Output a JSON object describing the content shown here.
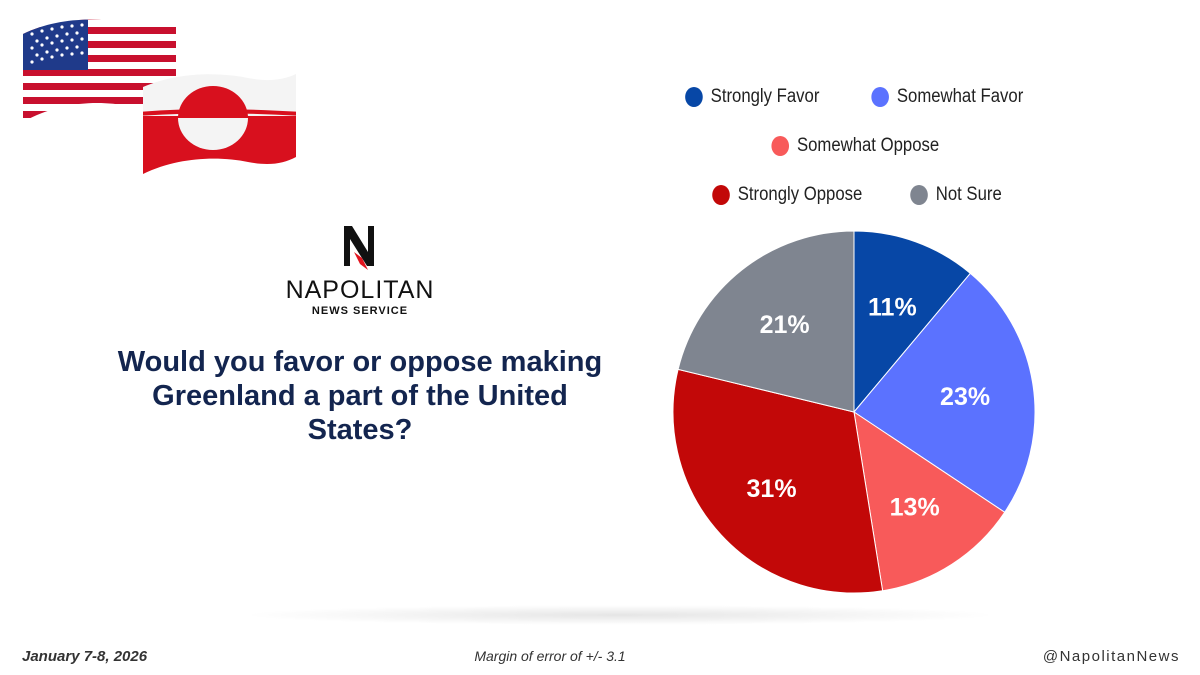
{
  "logo": {
    "name": "NAPOLITAN",
    "subtitle": "NEWS SERVICE"
  },
  "question": "Would you favor or oppose making Greenland a part of the United States?",
  "chart_data": {
    "type": "pie",
    "title": "Would you favor or oppose making Greenland a part of the United States?",
    "categories": [
      "Strongly Favor",
      "Somewhat Favor",
      "Somewhat Oppose",
      "Strongly Oppose",
      "Not Sure"
    ],
    "values": [
      11,
      23,
      13,
      31,
      21
    ],
    "labels": [
      "11%",
      "23%",
      "13%",
      "31%",
      "21%"
    ],
    "colors": [
      "#0747a6",
      "#5b72ff",
      "#f85a5a",
      "#c20808",
      "#7f8590"
    ],
    "legend_rows": [
      [
        0,
        1
      ],
      [
        2
      ],
      [
        3,
        4
      ]
    ]
  },
  "footer": {
    "date": "January 7-8, 2026",
    "margin": "Margin of error of +/- 3.1",
    "handle": "@NapolitanNews"
  }
}
